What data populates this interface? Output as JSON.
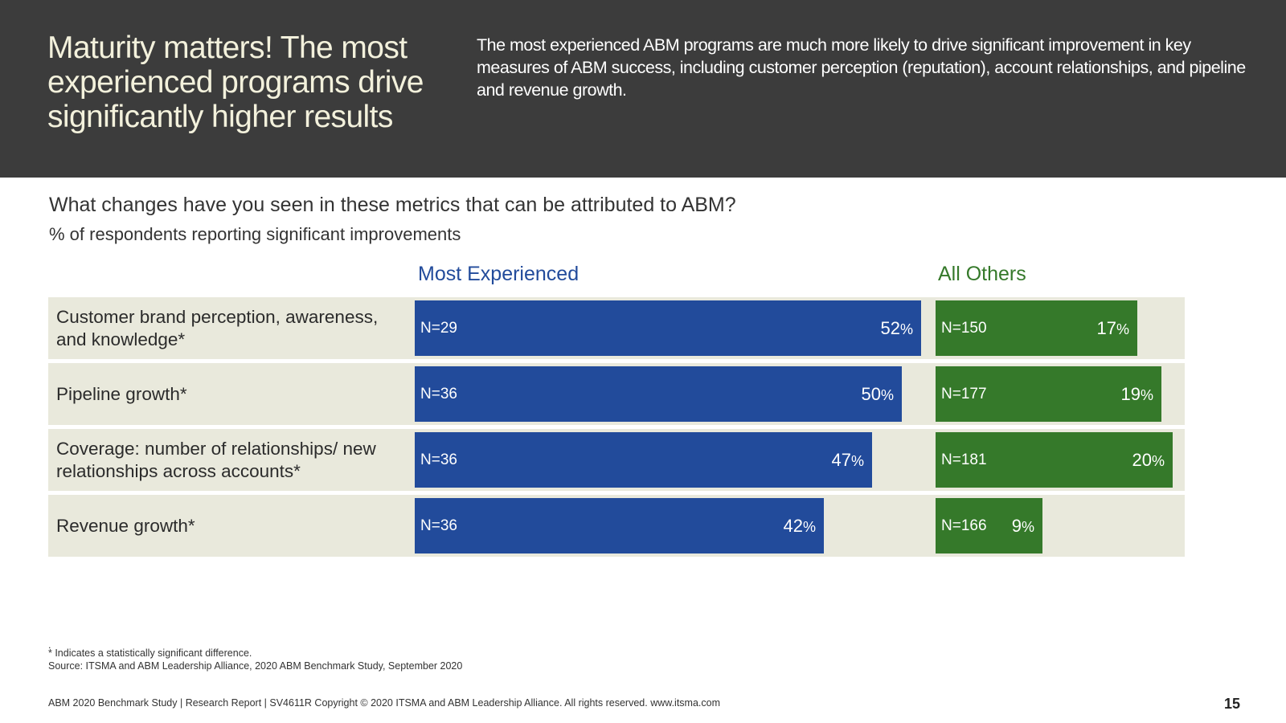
{
  "header": {
    "title": "Maturity matters! The most experienced programs drive significantly higher results",
    "summary": "The most experienced ABM programs are much more likely to drive significant improvement in key measures of ABM success, including customer perception (reputation), account relationships, and pipeline and revenue growth."
  },
  "chart_data": {
    "type": "bar",
    "orientation": "horizontal",
    "title": "What changes have you seen in these metrics that can be attributed to ABM?",
    "subtitle": "% of respondents reporting significant improvements",
    "categories": [
      "Customer brand perception, awareness, and knowledge*",
      "Pipeline growth*",
      "Coverage: number of relationships/ new relationships across accounts*",
      "Revenue growth*"
    ],
    "series": [
      {
        "name": "Most Experienced",
        "color": "#224b9b",
        "values": [
          52,
          50,
          47,
          42
        ],
        "n_labels": [
          "N=29",
          "N=36",
          "N=36",
          "N=36"
        ]
      },
      {
        "name": "All Others",
        "color": "#35792a",
        "values": [
          17,
          19,
          20,
          9
        ],
        "n_labels": [
          "N=150",
          "N=177",
          "N=181",
          "N=166"
        ]
      }
    ],
    "value_suffix": "%"
  },
  "footnotes": {
    "dot": ".",
    "significance": "* Indicates a statistically significant difference.",
    "source": "Source: ITSMA and ABM Leadership Alliance, 2020 ABM Benchmark Study, September 2020"
  },
  "footer": {
    "text": "ABM 2020 Benchmark Study | Research Report | SV4611R Copyright © 2020 ITSMA and ABM Leadership Alliance. All rights reserved. www.itsma.com",
    "page_number": "15"
  }
}
